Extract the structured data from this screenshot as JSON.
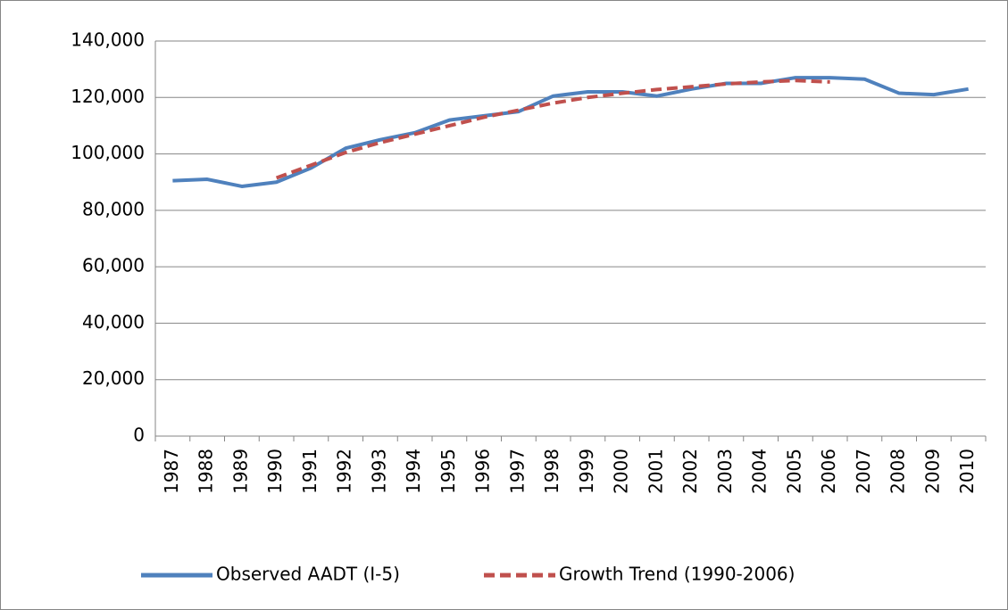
{
  "chart_data": {
    "type": "line",
    "categories": [
      "1987",
      "1988",
      "1989",
      "1990",
      "1991",
      "1992",
      "1993",
      "1994",
      "1995",
      "1996",
      "1997",
      "1998",
      "1999",
      "2000",
      "2001",
      "2002",
      "2003",
      "2004",
      "2005",
      "2006",
      "2007",
      "2008",
      "2009",
      "2010"
    ],
    "series": [
      {
        "name": "Observed AADT (I-5)",
        "color": "#4f81bd",
        "dashed": false,
        "values": [
          90500,
          91000,
          88500,
          90000,
          95000,
          102000,
          105000,
          107500,
          112000,
          113500,
          115000,
          120500,
          122000,
          122000,
          120500,
          123000,
          125000,
          125000,
          127000,
          127000,
          126500,
          121500,
          121000,
          123000
        ]
      },
      {
        "name": "Growth Trend (1990-2006)",
        "color": "#c0504d",
        "dashed": true,
        "values": [
          null,
          null,
          null,
          91500,
          96000,
          100500,
          104000,
          107000,
          110000,
          113000,
          115500,
          118000,
          120000,
          121500,
          122800,
          123800,
          124800,
          125500,
          126000,
          125500,
          null,
          null,
          null,
          null
        ]
      }
    ],
    "ylim": [
      0,
      140000
    ],
    "yticks": [
      0,
      {
        "value": 20000,
        "label": "20,000"
      },
      {
        "value": 40000,
        "label": "40,000"
      },
      {
        "value": 60000,
        "label": "60,000"
      },
      {
        "value": 80000,
        "label": "80,000"
      },
      {
        "value": 100000,
        "label": "100,000"
      },
      {
        "value": 120000,
        "label": "120,000"
      },
      {
        "value": 140000,
        "label": "140,000"
      }
    ],
    "grid": true,
    "legend": "bottom"
  }
}
